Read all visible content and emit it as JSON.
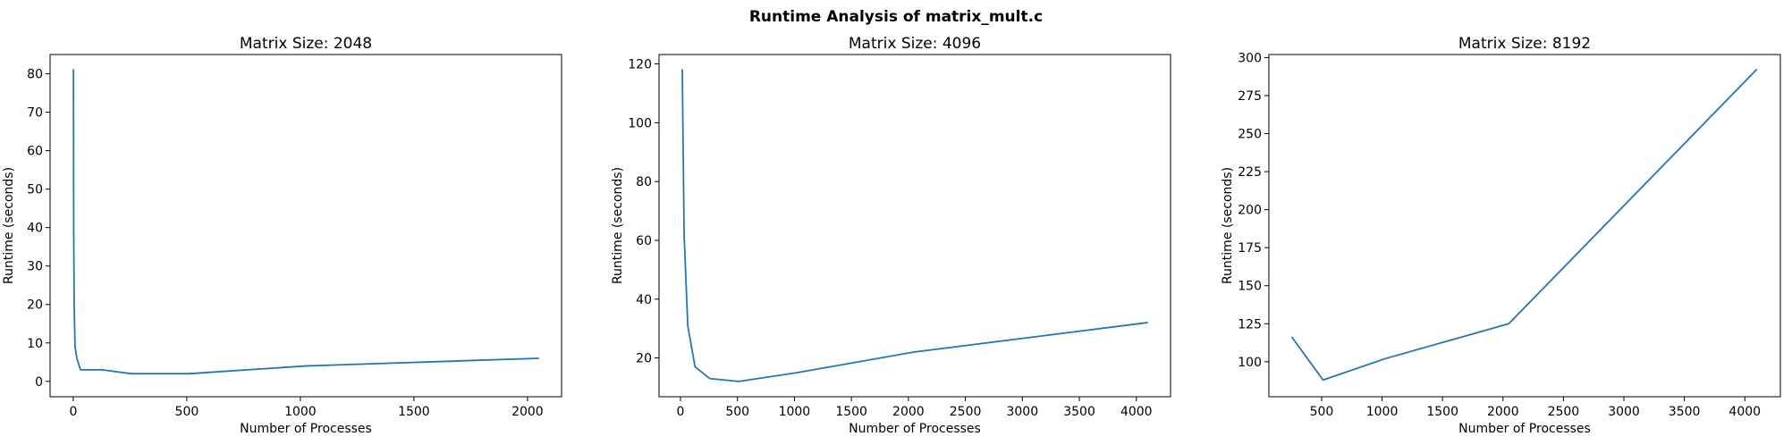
{
  "figure": {
    "title": "Runtime Analysis of matrix_mult.c"
  },
  "chart_data": [
    {
      "type": "line",
      "title": "Matrix Size: 2048",
      "xlabel": "Number of Processes",
      "ylabel": "Runtime (seconds)",
      "xlim": [
        -102,
        2150
      ],
      "ylim": [
        -4,
        85
      ],
      "xticks": [
        0,
        500,
        1000,
        1500,
        2000
      ],
      "yticks": [
        0,
        10,
        20,
        30,
        40,
        50,
        60,
        70,
        80
      ],
      "grid": false,
      "series": [
        {
          "color": "#1f77b4",
          "x": [
            1,
            2,
            4,
            8,
            16,
            32,
            64,
            128,
            256,
            512,
            1024,
            2048
          ],
          "y": [
            81,
            40,
            20,
            9,
            6,
            3,
            3,
            3,
            2,
            2,
            4,
            6
          ]
        }
      ]
    },
    {
      "type": "line",
      "title": "Matrix Size: 4096",
      "xlabel": "Number of Processes",
      "ylabel": "Runtime (seconds)",
      "xlim": [
        -188,
        4300
      ],
      "ylim": [
        6.8,
        123.2
      ],
      "xticks": [
        0,
        500,
        1000,
        1500,
        2000,
        2500,
        3000,
        3500,
        4000
      ],
      "yticks": [
        20,
        40,
        60,
        80,
        100,
        120
      ],
      "grid": false,
      "series": [
        {
          "color": "#1f77b4",
          "x": [
            16,
            32,
            64,
            128,
            256,
            512,
            1024,
            2048,
            4096
          ],
          "y": [
            118,
            62,
            31,
            17,
            13,
            12,
            15,
            22,
            32
          ]
        }
      ]
    },
    {
      "type": "line",
      "title": "Matrix Size: 8192",
      "xlabel": "Number of Processes",
      "ylabel": "Runtime (seconds)",
      "xlim": [
        64,
        4294
      ],
      "ylim": [
        77,
        302
      ],
      "xticks": [
        500,
        1000,
        1500,
        2000,
        2500,
        3000,
        3500,
        4000
      ],
      "yticks": [
        100,
        125,
        150,
        175,
        200,
        225,
        250,
        275,
        300
      ],
      "grid": false,
      "series": [
        {
          "color": "#1f77b4",
          "x": [
            256,
            512,
            1024,
            2048,
            4096
          ],
          "y": [
            116,
            88,
            102,
            125,
            292
          ]
        }
      ]
    }
  ]
}
